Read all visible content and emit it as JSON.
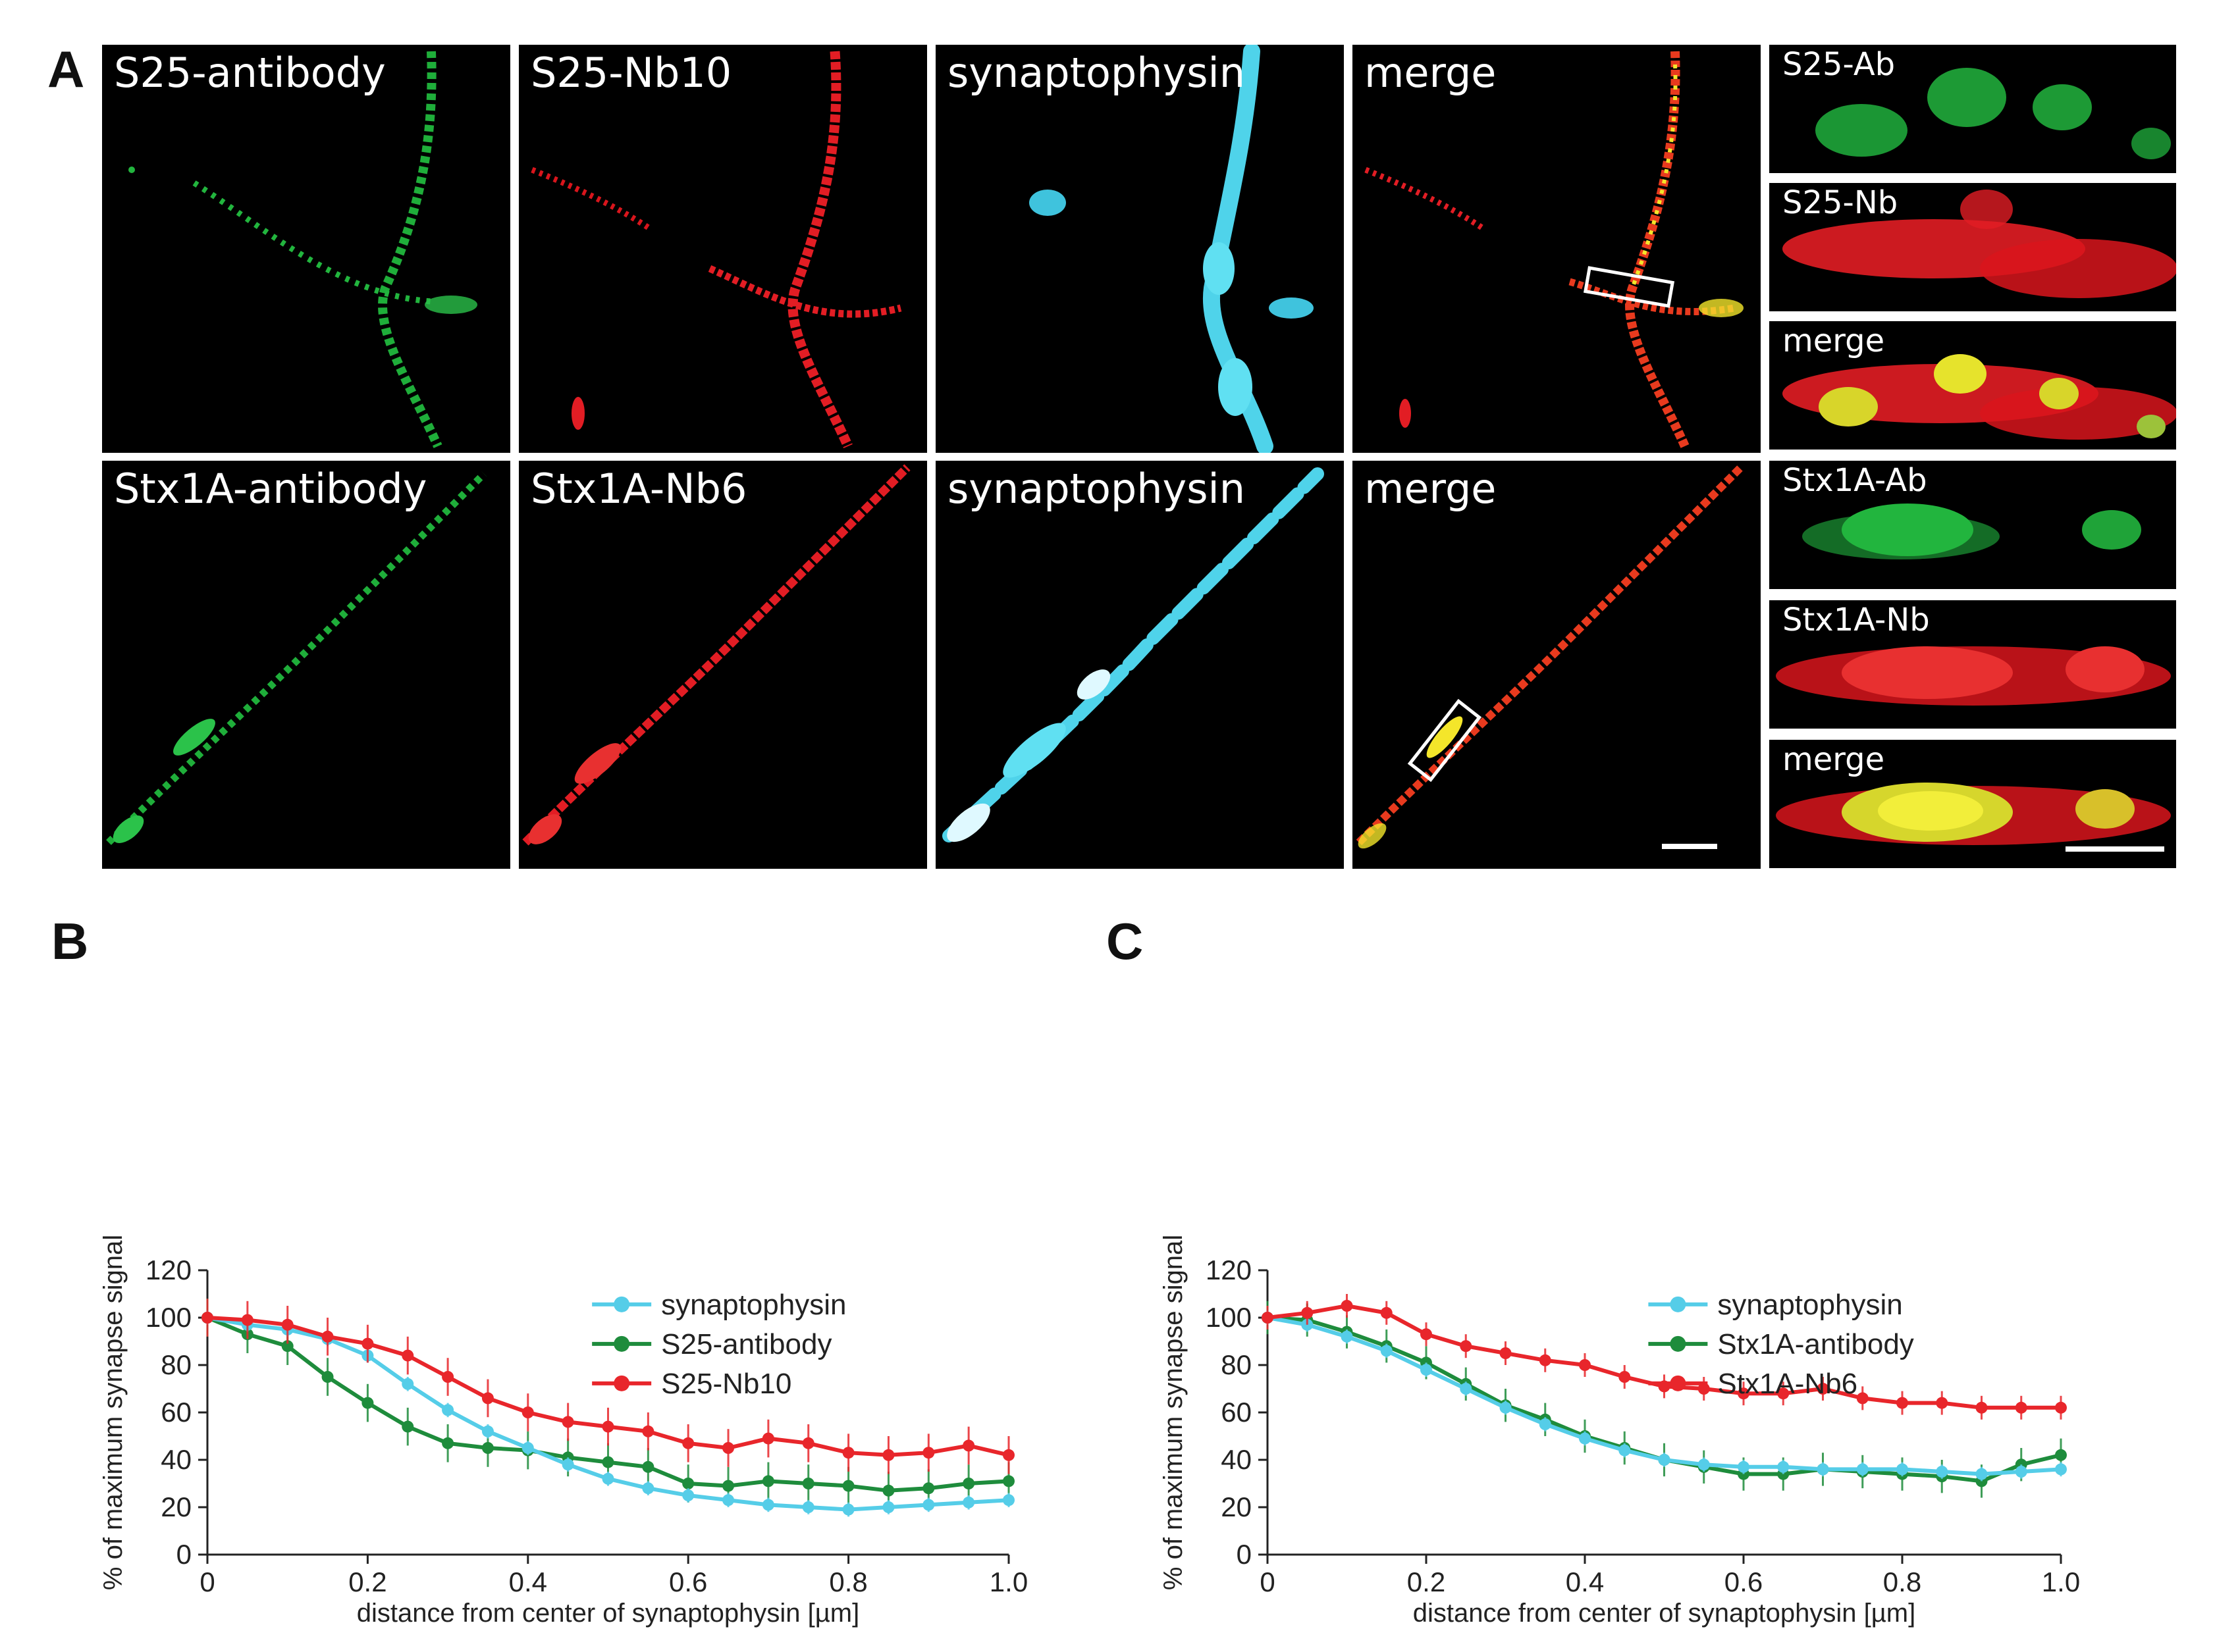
{
  "panel_letters": {
    "a": "A",
    "b": "B",
    "c": "C"
  },
  "micrographs": {
    "row1": [
      "S25-antibody",
      "S25-Nb10",
      "synaptophysin",
      "merge"
    ],
    "row2": [
      "Stx1A-antibody",
      "Stx1A-Nb6",
      "synaptophysin",
      "merge"
    ]
  },
  "zooms": [
    "S25-Ab",
    "S25-Nb",
    "merge",
    "Stx1A-Ab",
    "Stx1A-Nb",
    "merge"
  ],
  "colors": {
    "green": "#1e8c3c",
    "red": "#e8262b",
    "cyan": "#55cde8"
  },
  "chart_data": [
    {
      "type": "line",
      "panel": "B",
      "xlabel": "distance from center of synaptophysin [µm]",
      "ylabel": "% of maximum synapse signal",
      "xlim": [
        0,
        1.0
      ],
      "ylim": [
        0,
        120
      ],
      "xticks": [
        "0",
        "0.2",
        "0.4",
        "0.6",
        "0.8",
        "1.0"
      ],
      "yticks": [
        "0",
        "20",
        "40",
        "60",
        "80",
        "100",
        "120"
      ],
      "legend_position": "top-right",
      "x": [
        0,
        0.05,
        0.1,
        0.15,
        0.2,
        0.25,
        0.3,
        0.35,
        0.4,
        0.45,
        0.5,
        0.55,
        0.6,
        0.65,
        0.7,
        0.75,
        0.8,
        0.85,
        0.9,
        0.95,
        1.0
      ],
      "series": [
        {
          "name": "synaptophysin",
          "color": "#55cde8",
          "err": 3,
          "values": [
            100,
            97,
            95,
            91,
            84,
            72,
            61,
            52,
            45,
            38,
            32,
            28,
            25,
            23,
            21,
            20,
            19,
            20,
            21,
            22,
            23
          ]
        },
        {
          "name": "S25-antibody",
          "color": "#1e8c3c",
          "err": 8,
          "values": [
            100,
            93,
            88,
            75,
            64,
            54,
            47,
            45,
            44,
            41,
            39,
            37,
            30,
            29,
            31,
            30,
            29,
            27,
            28,
            30,
            31
          ]
        },
        {
          "name": "S25-Nb10",
          "color": "#e8262b",
          "err": 8,
          "values": [
            100,
            99,
            97,
            92,
            89,
            84,
            75,
            66,
            60,
            56,
            54,
            52,
            47,
            45,
            49,
            47,
            43,
            42,
            43,
            46,
            42
          ]
        }
      ]
    },
    {
      "type": "line",
      "panel": "C",
      "xlabel": "distance from center of synaptophysin [µm]",
      "ylabel": "% of maximum synapse signal",
      "xlim": [
        0,
        1.0
      ],
      "ylim": [
        0,
        120
      ],
      "xticks": [
        "0",
        "0.2",
        "0.4",
        "0.6",
        "0.8",
        "1.0"
      ],
      "yticks": [
        "0",
        "20",
        "40",
        "60",
        "80",
        "100",
        "120"
      ],
      "legend_position": "top-right",
      "x": [
        0,
        0.05,
        0.1,
        0.15,
        0.2,
        0.25,
        0.3,
        0.35,
        0.4,
        0.45,
        0.5,
        0.55,
        0.6,
        0.65,
        0.7,
        0.75,
        0.8,
        0.85,
        0.9,
        0.95,
        1.0
      ],
      "series": [
        {
          "name": "synaptophysin",
          "color": "#55cde8",
          "err": 3,
          "values": [
            100,
            97,
            92,
            86,
            78,
            70,
            62,
            55,
            49,
            44,
            40,
            38,
            37,
            37,
            36,
            36,
            36,
            35,
            34,
            35,
            36
          ]
        },
        {
          "name": "Stx1A-antibody",
          "color": "#1e8c3c",
          "err": 7,
          "values": [
            100,
            99,
            94,
            88,
            81,
            72,
            63,
            57,
            50,
            45,
            40,
            37,
            34,
            34,
            36,
            35,
            34,
            33,
            31,
            38,
            42
          ]
        },
        {
          "name": "Stx1A-Nb6",
          "color": "#e8262b",
          "err": 5,
          "values": [
            100,
            102,
            105,
            102,
            93,
            88,
            85,
            82,
            80,
            75,
            71,
            70,
            68,
            68,
            70,
            66,
            64,
            64,
            62,
            62,
            62
          ]
        }
      ]
    }
  ]
}
